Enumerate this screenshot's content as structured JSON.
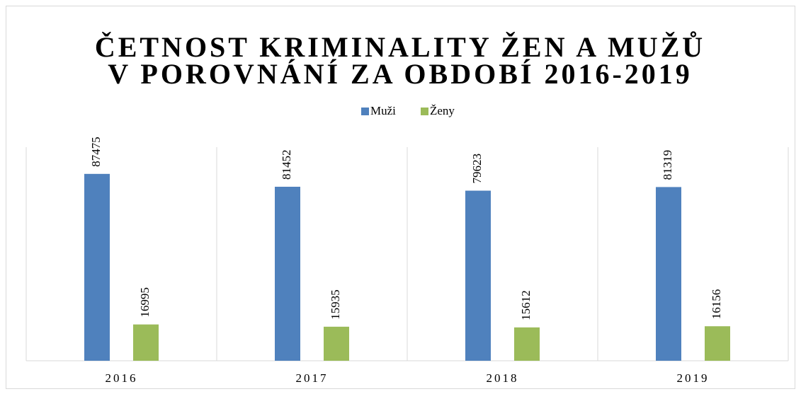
{
  "chart_data": {
    "type": "bar",
    "title": "ČETNOST KRIMINALITY ŽEN A MUŽŮ V POROVNÁNÍ ZA OBDOBÍ 2016-2019",
    "categories": [
      "2016",
      "2017",
      "2018",
      "2019"
    ],
    "series": [
      {
        "name": "Muži",
        "color": "#4f81bd",
        "values": [
          87475,
          81452,
          79623,
          81319
        ]
      },
      {
        "name": "Ženy",
        "color": "#9bbb59",
        "values": [
          16995,
          15935,
          15612,
          16156
        ]
      }
    ],
    "ylim": [
      0,
      100000
    ],
    "legend": "top"
  }
}
